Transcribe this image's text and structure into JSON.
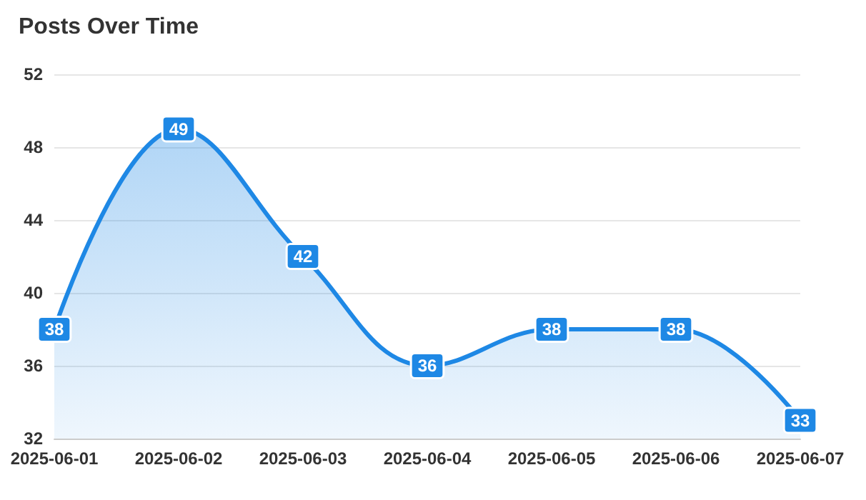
{
  "chart_data": {
    "type": "area",
    "title": "Posts Over Time",
    "categories": [
      "2025-06-01",
      "2025-06-02",
      "2025-06-03",
      "2025-06-04",
      "2025-06-05",
      "2025-06-06",
      "2025-06-07"
    ],
    "series": [
      {
        "color": "#1e88e5",
        "values": [
          38,
          49,
          42,
          36,
          38,
          38,
          33
        ]
      }
    ],
    "ylim": [
      32,
      52
    ],
    "yticks": [
      32,
      36,
      40,
      44,
      48,
      52
    ],
    "grid": "y",
    "data_labels": true,
    "line_style": "solid"
  }
}
